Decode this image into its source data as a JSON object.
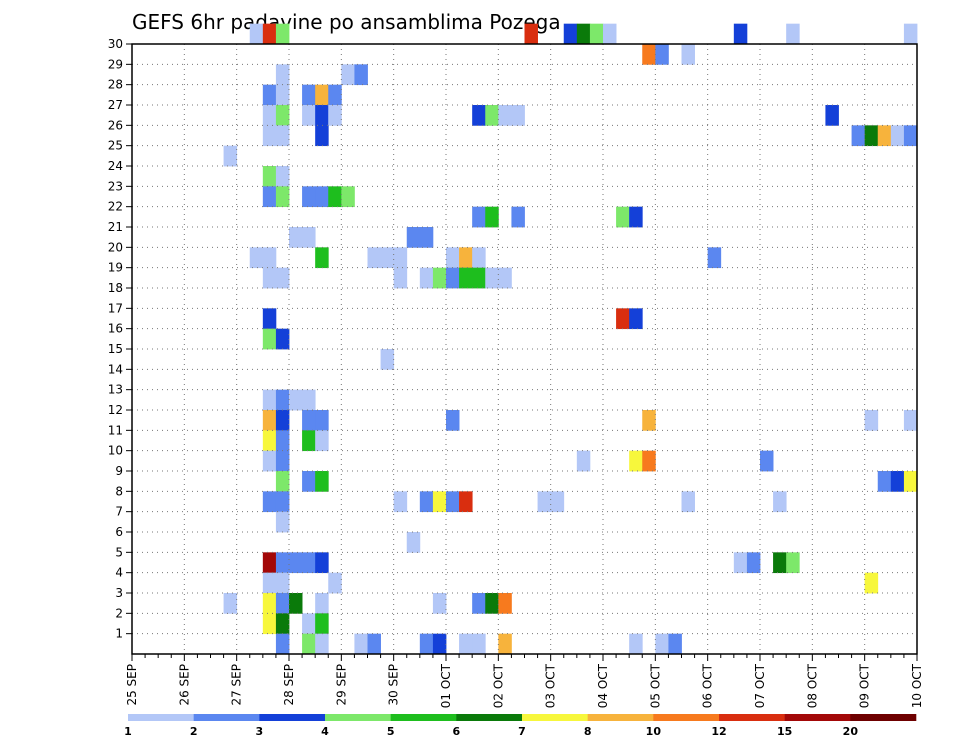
{
  "chart_data": {
    "type": "heatmap",
    "title": "GEFS 6hr padavine po ansamblima Pozega",
    "xlabel": "",
    "ylabel": "",
    "x_tick_labels": [
      "25 SEP",
      "26 SEP",
      "27 SEP",
      "28 SEP",
      "29 SEP",
      "30 SEP",
      "01 OCT",
      "02 OCT",
      "03 OCT",
      "04 OCT",
      "05 OCT",
      "06 OCT",
      "07 OCT",
      "08 OCT",
      "09 OCT",
      "10 OCT"
    ],
    "y_tick_labels": [
      "1",
      "2",
      "3",
      "4",
      "5",
      "6",
      "7",
      "8",
      "9",
      "10",
      "11",
      "12",
      "13",
      "14",
      "15",
      "16",
      "17",
      "18",
      "19",
      "20",
      "21",
      "22",
      "23",
      "24",
      "25",
      "26",
      "27",
      "28",
      "29",
      "30"
    ],
    "x_steps_per_day": 4,
    "x_total_steps": 60,
    "ylim": [
      0,
      30
    ],
    "grid": true,
    "colorbar": {
      "levels": [
        "1",
        "2",
        "3",
        "4",
        "5",
        "6",
        "7",
        "8",
        "10",
        "12",
        "15",
        "20"
      ],
      "colors": [
        "#b3c7f7",
        "#5b87f0",
        "#1440d8",
        "#7de86a",
        "#1ebe1e",
        "#0a7a0a",
        "#f7f73c",
        "#f7b33c",
        "#f77a1e",
        "#d92e0f",
        "#a30808",
        "#6e0000"
      ]
    },
    "cells": [
      [
        30,
        9,
        0
      ],
      [
        30,
        10,
        9
      ],
      [
        30,
        11,
        3
      ],
      [
        30,
        30,
        9
      ],
      [
        30,
        33,
        2
      ],
      [
        30,
        34,
        5
      ],
      [
        30,
        35,
        3
      ],
      [
        30,
        36,
        0
      ],
      [
        30,
        46,
        2
      ],
      [
        30,
        50,
        0
      ],
      [
        30,
        59,
        0
      ],
      [
        29,
        39,
        8
      ],
      [
        29,
        40,
        1
      ],
      [
        29,
        42,
        0
      ],
      [
        28,
        11,
        0
      ],
      [
        28,
        16,
        0
      ],
      [
        28,
        17,
        1
      ],
      [
        27,
        10,
        1
      ],
      [
        27,
        11,
        0
      ],
      [
        27,
        13,
        1
      ],
      [
        27,
        14,
        7
      ],
      [
        27,
        15,
        1
      ],
      [
        26,
        10,
        0
      ],
      [
        26,
        11,
        3
      ],
      [
        26,
        13,
        0
      ],
      [
        26,
        14,
        2
      ],
      [
        26,
        15,
        0
      ],
      [
        26,
        26,
        2
      ],
      [
        26,
        27,
        3
      ],
      [
        26,
        28,
        0
      ],
      [
        26,
        29,
        0
      ],
      [
        26,
        53,
        2
      ],
      [
        25,
        10,
        0
      ],
      [
        25,
        11,
        0
      ],
      [
        25,
        14,
        2
      ],
      [
        25,
        55,
        1
      ],
      [
        25,
        56,
        5
      ],
      [
        25,
        57,
        7
      ],
      [
        25,
        58,
        0
      ],
      [
        25,
        59,
        1
      ],
      [
        24,
        7,
        0
      ],
      [
        23,
        10,
        3
      ],
      [
        23,
        11,
        0
      ],
      [
        22,
        10,
        1
      ],
      [
        22,
        11,
        3
      ],
      [
        22,
        13,
        1
      ],
      [
        22,
        14,
        1
      ],
      [
        22,
        15,
        4
      ],
      [
        22,
        16,
        3
      ],
      [
        21,
        26,
        1
      ],
      [
        21,
        27,
        4
      ],
      [
        21,
        29,
        1
      ],
      [
        21,
        37,
        3
      ],
      [
        21,
        38,
        2
      ],
      [
        20,
        12,
        0
      ],
      [
        20,
        13,
        0
      ],
      [
        20,
        21,
        1
      ],
      [
        20,
        22,
        1
      ],
      [
        19,
        9,
        0
      ],
      [
        19,
        10,
        0
      ],
      [
        19,
        14,
        4
      ],
      [
        19,
        18,
        0
      ],
      [
        19,
        19,
        0
      ],
      [
        19,
        20,
        0
      ],
      [
        19,
        24,
        0
      ],
      [
        19,
        25,
        7
      ],
      [
        19,
        26,
        0
      ],
      [
        19,
        44,
        1
      ],
      [
        18,
        10,
        0
      ],
      [
        18,
        11,
        0
      ],
      [
        18,
        20,
        0
      ],
      [
        18,
        22,
        0
      ],
      [
        18,
        23,
        3
      ],
      [
        18,
        24,
        1
      ],
      [
        18,
        25,
        4
      ],
      [
        18,
        26,
        4
      ],
      [
        18,
        27,
        0
      ],
      [
        18,
        28,
        0
      ],
      [
        16,
        10,
        2
      ],
      [
        16,
        37,
        9
      ],
      [
        16,
        38,
        2
      ],
      [
        15,
        10,
        3
      ],
      [
        15,
        11,
        2
      ],
      [
        14,
        19,
        0
      ],
      [
        12,
        10,
        0
      ],
      [
        12,
        11,
        1
      ],
      [
        12,
        12,
        0
      ],
      [
        12,
        13,
        0
      ],
      [
        11,
        10,
        7
      ],
      [
        11,
        11,
        2
      ],
      [
        11,
        13,
        1
      ],
      [
        11,
        14,
        1
      ],
      [
        11,
        24,
        1
      ],
      [
        11,
        39,
        7
      ],
      [
        11,
        56,
        0
      ],
      [
        11,
        59,
        0
      ],
      [
        10,
        10,
        6
      ],
      [
        10,
        11,
        1
      ],
      [
        10,
        13,
        4
      ],
      [
        10,
        14,
        0
      ],
      [
        9,
        10,
        0
      ],
      [
        9,
        11,
        1
      ],
      [
        9,
        34,
        0
      ],
      [
        9,
        38,
        6
      ],
      [
        9,
        39,
        8
      ],
      [
        9,
        48,
        1
      ],
      [
        8,
        11,
        3
      ],
      [
        8,
        13,
        1
      ],
      [
        8,
        14,
        4
      ],
      [
        8,
        57,
        1
      ],
      [
        8,
        58,
        2
      ],
      [
        8,
        59,
        6
      ],
      [
        7,
        10,
        1
      ],
      [
        7,
        11,
        1
      ],
      [
        7,
        20,
        0
      ],
      [
        7,
        22,
        1
      ],
      [
        7,
        23,
        6
      ],
      [
        7,
        24,
        1
      ],
      [
        7,
        25,
        9
      ],
      [
        7,
        31,
        0
      ],
      [
        7,
        32,
        0
      ],
      [
        7,
        42,
        0
      ],
      [
        7,
        49,
        0
      ],
      [
        6,
        11,
        0
      ],
      [
        5,
        21,
        0
      ],
      [
        4,
        10,
        10
      ],
      [
        4,
        11,
        1
      ],
      [
        4,
        12,
        1
      ],
      [
        4,
        13,
        1
      ],
      [
        4,
        14,
        2
      ],
      [
        4,
        46,
        0
      ],
      [
        4,
        47,
        1
      ],
      [
        4,
        49,
        5
      ],
      [
        4,
        50,
        3
      ],
      [
        3,
        10,
        0
      ],
      [
        3,
        11,
        0
      ],
      [
        3,
        15,
        0
      ],
      [
        3,
        56,
        6
      ],
      [
        2,
        7,
        0
      ],
      [
        2,
        10,
        6
      ],
      [
        2,
        11,
        1
      ],
      [
        2,
        12,
        5
      ],
      [
        2,
        14,
        0
      ],
      [
        2,
        23,
        0
      ],
      [
        2,
        26,
        1
      ],
      [
        2,
        27,
        5
      ],
      [
        2,
        28,
        8
      ],
      [
        1,
        10,
        6
      ],
      [
        1,
        11,
        5
      ],
      [
        1,
        13,
        0
      ],
      [
        1,
        14,
        4
      ],
      [
        0,
        11,
        1
      ],
      [
        0,
        13,
        3
      ],
      [
        0,
        14,
        0
      ],
      [
        0,
        17,
        0
      ],
      [
        0,
        18,
        1
      ],
      [
        0,
        22,
        1
      ],
      [
        0,
        23,
        2
      ],
      [
        0,
        25,
        0
      ],
      [
        0,
        26,
        0
      ],
      [
        0,
        28,
        7
      ],
      [
        0,
        38,
        0
      ],
      [
        0,
        40,
        0
      ],
      [
        0,
        41,
        1
      ]
    ]
  }
}
